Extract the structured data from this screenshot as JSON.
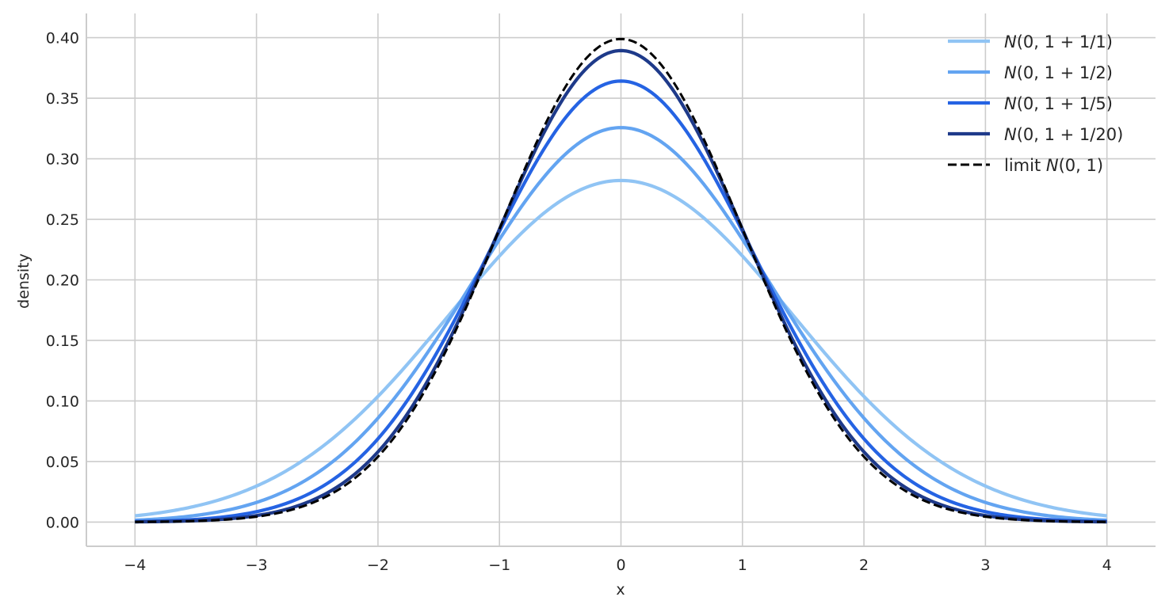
{
  "chart_data": {
    "type": "line",
    "title": "",
    "xlabel": "x",
    "ylabel": "density",
    "xlim": [
      -4.4,
      4.4
    ],
    "ylim": [
      -0.02,
      0.42
    ],
    "x_ticks": [
      -4,
      -3,
      -2,
      -1,
      0,
      1,
      2,
      3,
      4
    ],
    "x_tick_labels": [
      "−4",
      "−3",
      "−2",
      "−1",
      "0",
      "1",
      "2",
      "3",
      "4"
    ],
    "y_ticks": [
      0.0,
      0.05,
      0.1,
      0.15,
      0.2,
      0.25,
      0.3,
      0.35,
      0.4
    ],
    "y_tick_labels": [
      "0.00",
      "0.05",
      "0.10",
      "0.15",
      "0.20",
      "0.25",
      "0.30",
      "0.35",
      "0.40"
    ],
    "grid": true,
    "legend_position": "top-right",
    "x_range": [
      -4,
      4
    ],
    "series": [
      {
        "name": "N(0, 1 + 1/1)",
        "legend": {
          "prefix": "",
          "italic": "N",
          "rest": "(0, 1 + 1/1)"
        },
        "mean": 0,
        "variance": 2.0,
        "peak": 0.282,
        "color": "#90c4f4",
        "dash": "solid"
      },
      {
        "name": "N(0, 1 + 1/2)",
        "legend": {
          "prefix": "",
          "italic": "N",
          "rest": "(0, 1 + 1/2)"
        },
        "mean": 0,
        "variance": 1.5,
        "peak": 0.326,
        "color": "#63a4f1",
        "dash": "solid"
      },
      {
        "name": "N(0, 1 + 1/5)",
        "legend": {
          "prefix": "",
          "italic": "N",
          "rest": "(0, 1 + 1/5)"
        },
        "mean": 0,
        "variance": 1.2,
        "peak": 0.364,
        "color": "#2563e3",
        "dash": "solid"
      },
      {
        "name": "N(0, 1 + 1/20)",
        "legend": {
          "prefix": "",
          "italic": "N",
          "rest": "(0, 1 + 1/20)"
        },
        "mean": 0,
        "variance": 1.05,
        "peak": 0.389,
        "color": "#1e3a8a",
        "dash": "solid"
      },
      {
        "name": "limit N(0, 1)",
        "legend": {
          "prefix": "limit ",
          "italic": "N",
          "rest": "(0, 1)"
        },
        "mean": 0,
        "variance": 1.0,
        "peak": 0.399,
        "color": "#000000",
        "dash": "dashed"
      }
    ]
  }
}
